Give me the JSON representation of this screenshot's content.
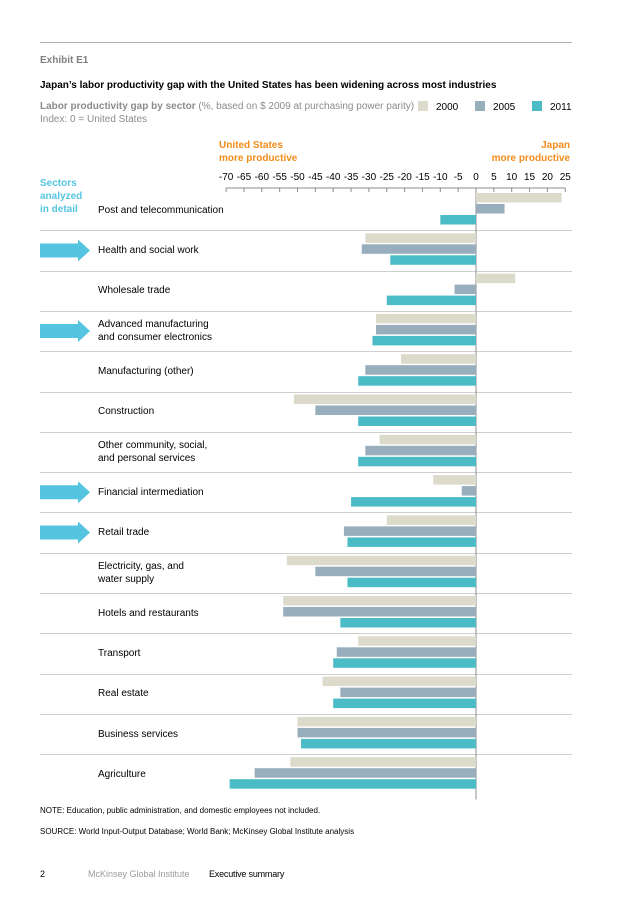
{
  "exhibit": "Exhibit E1",
  "title": "Japan’s labor productivity gap with the United States has been widening across most industries",
  "subtitle_bold": "Labor productivity gap by sector",
  "subtitle_rest": " (%, based on $ 2009 at purchasing power parity)",
  "index_note": "Index: 0 = United States",
  "legend": [
    {
      "label": "2000",
      "color": "#dcdacb"
    },
    {
      "label": "2005",
      "color": "#98aebc"
    },
    {
      "label": "2011",
      "color": "#4bbcc5"
    }
  ],
  "us_label_line1": "United States",
  "us_label_line2": "more productive",
  "japan_label_line1": "Japan",
  "japan_label_line2": "more productive",
  "sectors_label_line1": "Sectors",
  "sectors_label_line2": "analyzed",
  "sectors_label_line3": "in detail",
  "chart_data": {
    "type": "bar",
    "orientation": "horizontal",
    "xlim": [
      -70,
      25
    ],
    "xticks": [
      -70,
      -65,
      -60,
      -55,
      -50,
      -45,
      -40,
      -35,
      -30,
      -25,
      -20,
      -15,
      -10,
      -5,
      0,
      5,
      10,
      15,
      20,
      25
    ],
    "series_names": [
      "2000",
      "2005",
      "2011"
    ],
    "series_colors": [
      "#dcdacb",
      "#98aebc",
      "#4bbcc5"
    ],
    "categories": [
      {
        "line1": "Post and telecommunication",
        "line2": "",
        "detail": false,
        "values": [
          24,
          8,
          -10
        ]
      },
      {
        "line1": "Health and social work",
        "line2": "",
        "detail": true,
        "values": [
          -31,
          -32,
          -24
        ]
      },
      {
        "line1": "Wholesale trade",
        "line2": "",
        "detail": false,
        "values": [
          11,
          -6,
          -25
        ]
      },
      {
        "line1": "Advanced manufacturing",
        "line2": "and consumer electronics",
        "detail": true,
        "values": [
          -28,
          -28,
          -29
        ]
      },
      {
        "line1": "Manufacturing (other)",
        "line2": "",
        "detail": false,
        "values": [
          -21,
          -31,
          -33
        ]
      },
      {
        "line1": "Construction",
        "line2": "",
        "detail": false,
        "values": [
          -51,
          -45,
          -33
        ]
      },
      {
        "line1": "Other community, social,",
        "line2": "and personal services",
        "detail": false,
        "values": [
          -27,
          -31,
          -33
        ]
      },
      {
        "line1": "Financial intermediation",
        "line2": "",
        "detail": true,
        "values": [
          -12,
          -4,
          -35
        ]
      },
      {
        "line1": "Retail trade",
        "line2": "",
        "detail": true,
        "values": [
          -25,
          -37,
          -36
        ]
      },
      {
        "line1": "Electricity, gas, and",
        "line2": "water supply",
        "detail": false,
        "values": [
          -53,
          -45,
          -36
        ]
      },
      {
        "line1": "Hotels and restaurants",
        "line2": "",
        "detail": false,
        "values": [
          -54,
          -54,
          -38
        ]
      },
      {
        "line1": "Transport",
        "line2": "",
        "detail": false,
        "values": [
          -33,
          -39,
          -40
        ]
      },
      {
        "line1": "Real estate",
        "line2": "",
        "detail": false,
        "values": [
          -43,
          -38,
          -40
        ]
      },
      {
        "line1": "Business services",
        "line2": "",
        "detail": false,
        "values": [
          -50,
          -50,
          -49
        ]
      },
      {
        "line1": "Agriculture",
        "line2": "",
        "detail": false,
        "values": [
          -52,
          -62,
          -69
        ]
      }
    ]
  },
  "footnote": "NOTE: Education, public administration, and domestic employees not included.",
  "source": "SOURCE: World Input-Output Database; World Bank; McKinsey Global Institute analysis",
  "page_number": "2",
  "publisher": "McKinsey Global Institute",
  "section": "Executive summary"
}
